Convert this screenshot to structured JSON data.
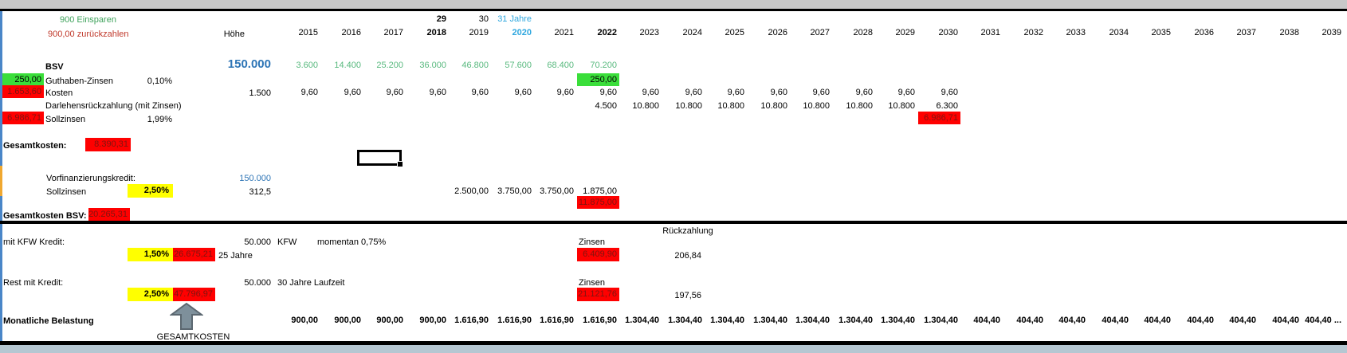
{
  "colors": {
    "green_cell": "#3ADE3A",
    "red_cell": "#FF0000",
    "yellow_cell": "#FFFF00",
    "blue_text": "#2E75B6",
    "cyan_text": "#2FA7DF",
    "green_text": "#3FA35C",
    "red_text": "#C0392B"
  },
  "header": {
    "einsparen_note": "900 Einsparen",
    "zurueckzahlen_note": "900,00 zurückzahlen",
    "hoehe_label": "Höhe"
  },
  "grid": {
    "years": [
      "2015",
      "2016",
      "2017",
      "2018",
      "2019",
      "2020",
      "2021",
      "2022",
      "2023",
      "2024",
      "2025",
      "2026",
      "2027",
      "2028",
      "2029",
      "2030",
      "2031",
      "2032",
      "2033",
      "2034",
      "2035",
      "2036",
      "2037",
      "2038",
      "2039"
    ],
    "marker_row": [
      "",
      "",
      "",
      "29",
      "30",
      "31 Jahre",
      "",
      "",
      "",
      "",
      "",
      "",
      "",
      "",
      "",
      "",
      "",
      "",
      "",
      "",
      "",
      "",
      "",
      "",
      ""
    ],
    "bsv_values": [
      "3.600",
      "14.400",
      "25.200",
      "36.000",
      "46.800",
      "57.600",
      "68.400",
      "70.200",
      "",
      "",
      "",
      "",
      "",
      "",
      "",
      "",
      "",
      "",
      "",
      "",
      "",
      "",
      "",
      "",
      ""
    ],
    "guthaben_cells": [
      "",
      "",
      "",
      "",
      "",
      "",
      "",
      "250,00",
      "",
      "",
      "",
      "",
      "",
      "",
      "",
      "",
      "",
      "",
      "",
      "",
      "",
      "",
      "",
      "",
      ""
    ],
    "kosten_values": [
      "9,60",
      "9,60",
      "9,60",
      "9,60",
      "9,60",
      "9,60",
      "9,60",
      "9,60",
      "9,60",
      "9,60",
      "9,60",
      "9,60",
      "9,60",
      "9,60",
      "9,60",
      "9,60",
      "",
      "",
      "",
      "",
      "",
      "",
      "",
      "",
      ""
    ],
    "darlehen_values": [
      "",
      "",
      "",
      "",
      "",
      "",
      "",
      "4.500",
      "10.800",
      "10.800",
      "10.800",
      "10.800",
      "10.800",
      "10.800",
      "10.800",
      "6.300",
      "",
      "",
      "",
      "",
      "",
      "",
      "",
      "",
      ""
    ],
    "sollzinsen_cells": [
      "",
      "",
      "",
      "",
      "",
      "",
      "",
      "",
      "",
      "",
      "",
      "",
      "",
      "",
      "",
      "6.986,71",
      "",
      "",
      "",
      "",
      "",
      "",
      "",
      "",
      ""
    ],
    "vorfinanzierung_zinsen": [
      "",
      "",
      "",
      "",
      "2.500,00",
      "3.750,00",
      "3.750,00",
      "1.875,00",
      "",
      "",
      "",
      "",
      "",
      "",
      "",
      "",
      "",
      "",
      "",
      "",
      "",
      "",
      "",
      "",
      ""
    ],
    "vorfinanzierung_total": [
      "",
      "",
      "",
      "",
      "",
      "",
      "",
      "11.875,00",
      "",
      "",
      "",
      "",
      "",
      "",
      "",
      "",
      "",
      "",
      "",
      "",
      "",
      "",
      "",
      "",
      ""
    ],
    "monatliche_values": [
      "900,00",
      "900,00",
      "900,00",
      "900,00",
      "1.616,90",
      "1.616,90",
      "1.616,90",
      "1.616,90",
      "1.304,40",
      "1.304,40",
      "1.304,40",
      "1.304,40",
      "1.304,40",
      "1.304,40",
      "1.304,40",
      "1.304,40",
      "404,40",
      "404,40",
      "404,40",
      "404,40",
      "404,40",
      "404,40",
      "404,40",
      "404,40",
      "404,40 ..."
    ]
  },
  "bsv": {
    "label": "BSV",
    "amount": "150.000"
  },
  "guthaben": {
    "left_value": "250,00",
    "label": "Guthaben-Zinsen",
    "rate": "0,10%"
  },
  "kosten": {
    "left_value": "1.653,60",
    "label": "Kosten",
    "hoehe": "1.500"
  },
  "darlehen": {
    "label": "Darlehensrückzahlung (mit Zinsen)"
  },
  "sollzinsen": {
    "left_value": "6.986,71",
    "label": "Sollzinsen",
    "rate": "1,99%"
  },
  "gesamtkosten": {
    "label": "Gesamtkosten:",
    "value": "8.390,31"
  },
  "vorfinanzierung": {
    "label": "Vorfinanzierungskredit:",
    "amount": "150.000",
    "zins_label": "Sollzinsen",
    "rate": "2,50%",
    "monthly": "312,5"
  },
  "gesamtkosten_bsv": {
    "label": "Gesamtkosten BSV:",
    "value": "20.265,31"
  },
  "rueckzahlung_label": "Rückzahlung",
  "kfw": {
    "label": "mit KFW Kredit:",
    "amount": "50.000",
    "unit": "KFW",
    "note": "momentan 0,75%",
    "zinsen_label": "Zinsen",
    "rate": "1,50%",
    "total": "26.675,21",
    "term": "25 Jahre",
    "zinsen_total": "6.409,90",
    "monthly": "206,84"
  },
  "rest": {
    "label": "Rest mit Kredit:",
    "amount": "50.000",
    "note": "30 Jahre Laufzeit",
    "zinsen_label": "Zinsen",
    "rate": "2,50%",
    "total": "47.796,97",
    "zinsen_total": "21.121,76",
    "monthly": "197,56"
  },
  "monatliche": {
    "label": "Monatliche Belastung"
  },
  "arrow_label": "GESAMTKOSTEN"
}
